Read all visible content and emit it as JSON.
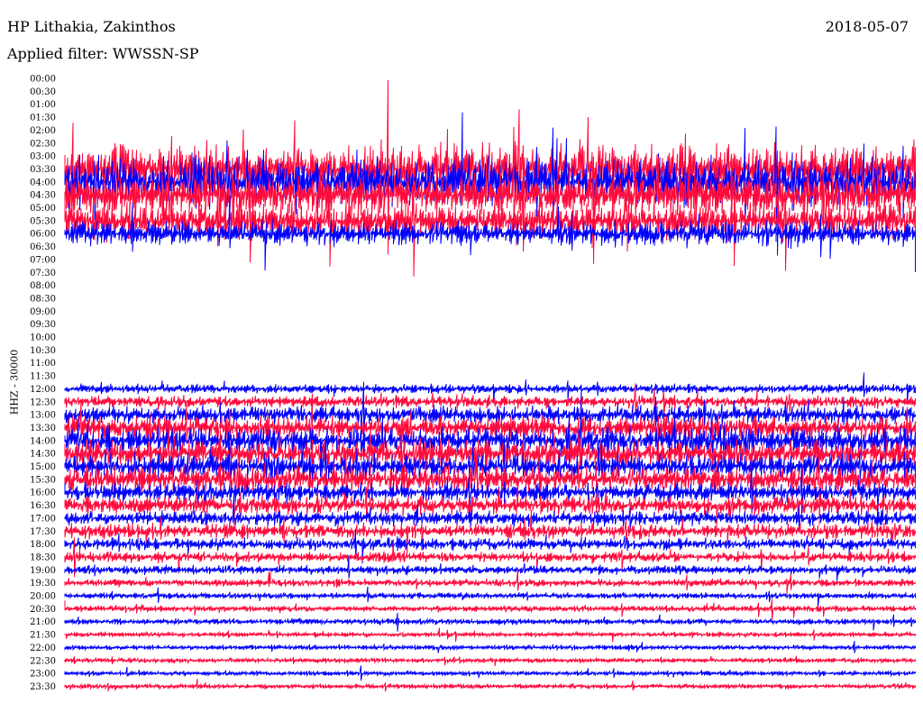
{
  "header": {
    "station": "HP Lithakia, Zakinthos",
    "date": "2018-05-07",
    "filter_prefix": "Applied filter: ",
    "filter_name": "WWSSN-SP"
  },
  "chart_data": {
    "type": "helicorder",
    "title": "HP Lithakia, Zakinthos",
    "date": "2018-05-07",
    "filter": "WWSSN-SP",
    "ylabel": "HHZ - 30000",
    "row_labels": [
      "00:00",
      "00:30",
      "01:00",
      "01:30",
      "02:00",
      "02:30",
      "03:00",
      "03:30",
      "04:00",
      "04:30",
      "05:00",
      "05:30",
      "06:00",
      "06:30",
      "07:00",
      "07:30",
      "08:00",
      "08:30",
      "09:00",
      "09:30",
      "10:00",
      "10:30",
      "11:00",
      "11:30",
      "12:00",
      "12:30",
      "13:00",
      "13:30",
      "14:00",
      "14:30",
      "15:00",
      "15:30",
      "16:00",
      "16:30",
      "17:00",
      "17:30",
      "18:00",
      "18:30",
      "19:00",
      "19:30",
      "20:00",
      "20:30",
      "21:00",
      "21:30",
      "22:00",
      "22:30",
      "23:00",
      "23:30"
    ],
    "trace_colors": [
      "#ff0a3c",
      "#0000ff"
    ],
    "traces": [
      {
        "row": "03:30",
        "color": "#ff0a3c",
        "noise": 34
      },
      {
        "row": "04:00",
        "color": "#0000ff",
        "noise": 32
      },
      {
        "row": "04:30",
        "color": "#ff0a3c",
        "noise": 28
      },
      {
        "row": "05:30",
        "color": "#ff0a3c",
        "noise": 24
      },
      {
        "row": "06:00",
        "color": "#0000ff",
        "noise": 16
      },
      {
        "row": "12:00",
        "color": "#0000ff",
        "noise": 6
      },
      {
        "row": "12:30",
        "color": "#ff0a3c",
        "noise": 8
      },
      {
        "row": "13:00",
        "color": "#0000ff",
        "noise": 12
      },
      {
        "row": "13:30",
        "color": "#ff0a3c",
        "noise": 16
      },
      {
        "row": "14:00",
        "color": "#0000ff",
        "noise": 18
      },
      {
        "row": "14:30",
        "color": "#ff0a3c",
        "noise": 18
      },
      {
        "row": "15:00",
        "color": "#0000ff",
        "noise": 16
      },
      {
        "row": "15:30",
        "color": "#ff0a3c",
        "noise": 18
      },
      {
        "row": "16:00",
        "color": "#0000ff",
        "noise": 12
      },
      {
        "row": "16:30",
        "color": "#ff0a3c",
        "noise": 12
      },
      {
        "row": "17:00",
        "color": "#0000ff",
        "noise": 10
      },
      {
        "row": "17:30",
        "color": "#ff0a3c",
        "noise": 10
      },
      {
        "row": "18:00",
        "color": "#0000ff",
        "noise": 8
      },
      {
        "row": "18:30",
        "color": "#ff0a3c",
        "noise": 7
      },
      {
        "row": "19:00",
        "color": "#0000ff",
        "noise": 6
      },
      {
        "row": "19:30",
        "color": "#ff0a3c",
        "noise": 5
      },
      {
        "row": "20:00",
        "color": "#0000ff",
        "noise": 4
      },
      {
        "row": "20:30",
        "color": "#ff0a3c",
        "noise": 4
      },
      {
        "row": "21:00",
        "color": "#0000ff",
        "noise": 4
      },
      {
        "row": "21:30",
        "color": "#ff0a3c",
        "noise": 3
      },
      {
        "row": "22:00",
        "color": "#0000ff",
        "noise": 3
      },
      {
        "row": "22:30",
        "color": "#ff0a3c",
        "noise": 3
      },
      {
        "row": "23:00",
        "color": "#0000ff",
        "noise": 3
      },
      {
        "row": "23:30",
        "color": "#ff0a3c",
        "noise": 3
      }
    ]
  }
}
